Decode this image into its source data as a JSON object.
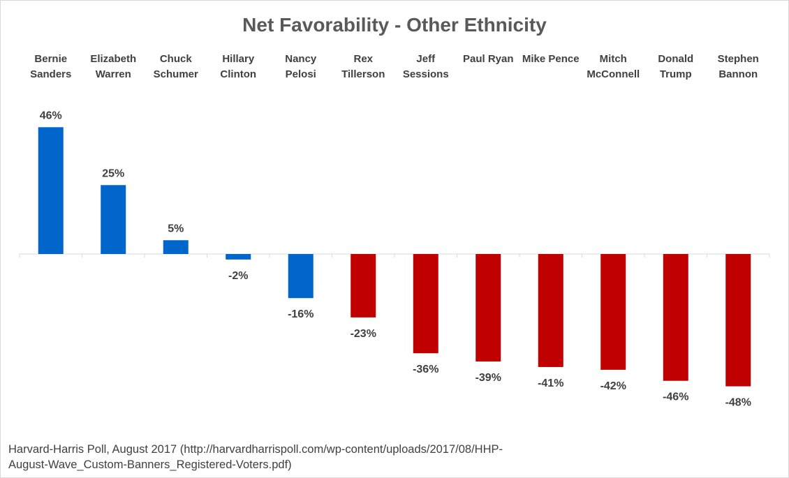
{
  "chart_data": {
    "type": "bar",
    "title": "Net Favorability - Other Ethnicity",
    "categories": [
      [
        "Bernie",
        "Sanders"
      ],
      [
        "Elizabeth",
        "Warren"
      ],
      [
        "Chuck",
        "Schumer"
      ],
      [
        "Hillary",
        "Clinton"
      ],
      [
        "Nancy",
        "Pelosi"
      ],
      [
        "Rex",
        "Tillerson"
      ],
      [
        "Jeff",
        "Sessions"
      ],
      [
        "Paul Ryan"
      ],
      [
        "Mike Pence"
      ],
      [
        "Mitch",
        "McConnell"
      ],
      [
        "Donald",
        "Trump"
      ],
      [
        "Stephen",
        "Bannon"
      ]
    ],
    "values": [
      46,
      25,
      5,
      -2,
      -16,
      -23,
      -36,
      -39,
      -41,
      -42,
      -46,
      -48
    ],
    "value_labels": [
      "46%",
      "25%",
      "5%",
      "-2%",
      "-16%",
      "-23%",
      "-36%",
      "-39%",
      "-41%",
      "-42%",
      "-46%",
      "-48%"
    ],
    "bar_colors": [
      "#0066cc",
      "#0066cc",
      "#0066cc",
      "#0066cc",
      "#0066cc",
      "#c00000",
      "#c00000",
      "#c00000",
      "#c00000",
      "#c00000",
      "#c00000",
      "#c00000"
    ],
    "category_label_position": "top",
    "grid": false,
    "legend": "none"
  },
  "source": {
    "line1": "Harvard-Harris Poll, August 2017 (http://harvardharrispoll.com/wp-content/uploads/2017/08/HHP-",
    "line2": "August-Wave_Custom-Banners_Registered-Voters.pdf)"
  }
}
